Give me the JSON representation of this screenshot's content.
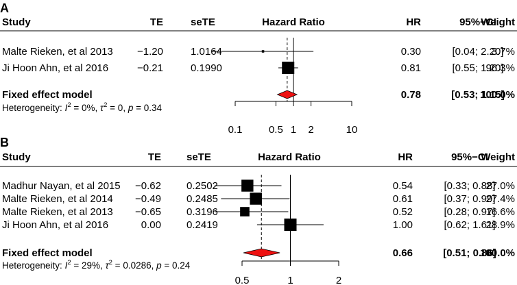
{
  "chart_data": [
    {
      "type": "forest",
      "panel_label": "A",
      "columns": {
        "study": "Study",
        "te": "TE",
        "sete": "seTE",
        "plot": "Hazard Ratio",
        "hr": "HR",
        "ci": "95%−CI",
        "weight": "Weight"
      },
      "studies": [
        {
          "study": "Malte Rieken, et al 2013",
          "te": "−1.20",
          "sete": "1.0164",
          "hr_text": "0.30",
          "ci_text": "[0.04; 2.20]",
          "weight_text": "3.7%",
          "hr": 0.3,
          "lower": 0.04,
          "upper": 2.2,
          "weight": 3.7
        },
        {
          "study": "Ji Hoon Ahn, et al 2016",
          "te": "−0.21",
          "sete": "0.1990",
          "hr_text": "0.81",
          "ci_text": "[0.55; 1.20]",
          "weight_text": "96.3%",
          "hr": 0.81,
          "lower": 0.55,
          "upper": 1.2,
          "weight": 96.3
        }
      ],
      "fixed": {
        "label": "Fixed effect model",
        "hr_text": "0.78",
        "ci_text": "[0.53; 1.15]",
        "weight_text": "100.0%",
        "hr": 0.78,
        "lower": 0.53,
        "upper": 1.15
      },
      "heterogeneity": {
        "prefix": "Heterogeneity: ",
        "i2": "0%",
        "tau2": "0",
        "p": "0.34"
      },
      "axis": {
        "ticks": [
          0.1,
          0.5,
          1,
          2,
          10
        ],
        "tick_labels": [
          "0.1",
          "0.5",
          "1",
          "2",
          "10"
        ],
        "range": [
          0.1,
          10
        ],
        "scale": "log"
      }
    },
    {
      "type": "forest",
      "panel_label": "B",
      "columns": {
        "study": "Study",
        "te": "TE",
        "sete": "seTE",
        "plot": "Hazard Ratio",
        "hr": "HR",
        "ci": "95%−CI",
        "weight": "Weight"
      },
      "studies": [
        {
          "study": "Madhur Nayan, et al 2015",
          "te": "−0.62",
          "sete": "0.2502",
          "hr_text": "0.54",
          "ci_text": "[0.33; 0.88]",
          "weight_text": "27.0%",
          "hr": 0.54,
          "lower": 0.33,
          "upper": 0.88,
          "weight": 27.0
        },
        {
          "study": "Malte Rieken, et al 2014",
          "te": "−0.49",
          "sete": "0.2485",
          "hr_text": "0.61",
          "ci_text": "[0.37; 0.99]",
          "weight_text": "27.4%",
          "hr": 0.61,
          "lower": 0.37,
          "upper": 0.99,
          "weight": 27.4
        },
        {
          "study": "Malte Rieken, et al 2013",
          "te": "−0.65",
          "sete": "0.3196",
          "hr_text": "0.52",
          "ci_text": "[0.28; 0.97]",
          "weight_text": "16.6%",
          "hr": 0.52,
          "lower": 0.28,
          "upper": 0.97,
          "weight": 16.6
        },
        {
          "study": "Ji Hoon Ahn, et al 2016",
          "te": "0.00",
          "sete": "0.2419",
          "hr_text": "1.00",
          "ci_text": "[0.62; 1.61]",
          "weight_text": "28.9%",
          "hr": 1.0,
          "lower": 0.62,
          "upper": 1.61,
          "weight": 28.9
        }
      ],
      "fixed": {
        "label": "Fixed effect model",
        "hr_text": "0.66",
        "ci_text": "[0.51; 0.86]",
        "weight_text": "100.0%",
        "hr": 0.66,
        "lower": 0.51,
        "upper": 0.86
      },
      "heterogeneity": {
        "prefix": "Heterogeneity: ",
        "i2": "29%",
        "tau2": "0.0286",
        "p": "0.24"
      },
      "axis": {
        "ticks": [
          0.5,
          1,
          2
        ],
        "tick_labels": [
          "0.5",
          "1",
          "2"
        ],
        "range": [
          0.5,
          2
        ],
        "scale": "log"
      }
    }
  ],
  "colors": {
    "diamond": "#ee1111",
    "box": "#000000",
    "line": "#000000"
  }
}
